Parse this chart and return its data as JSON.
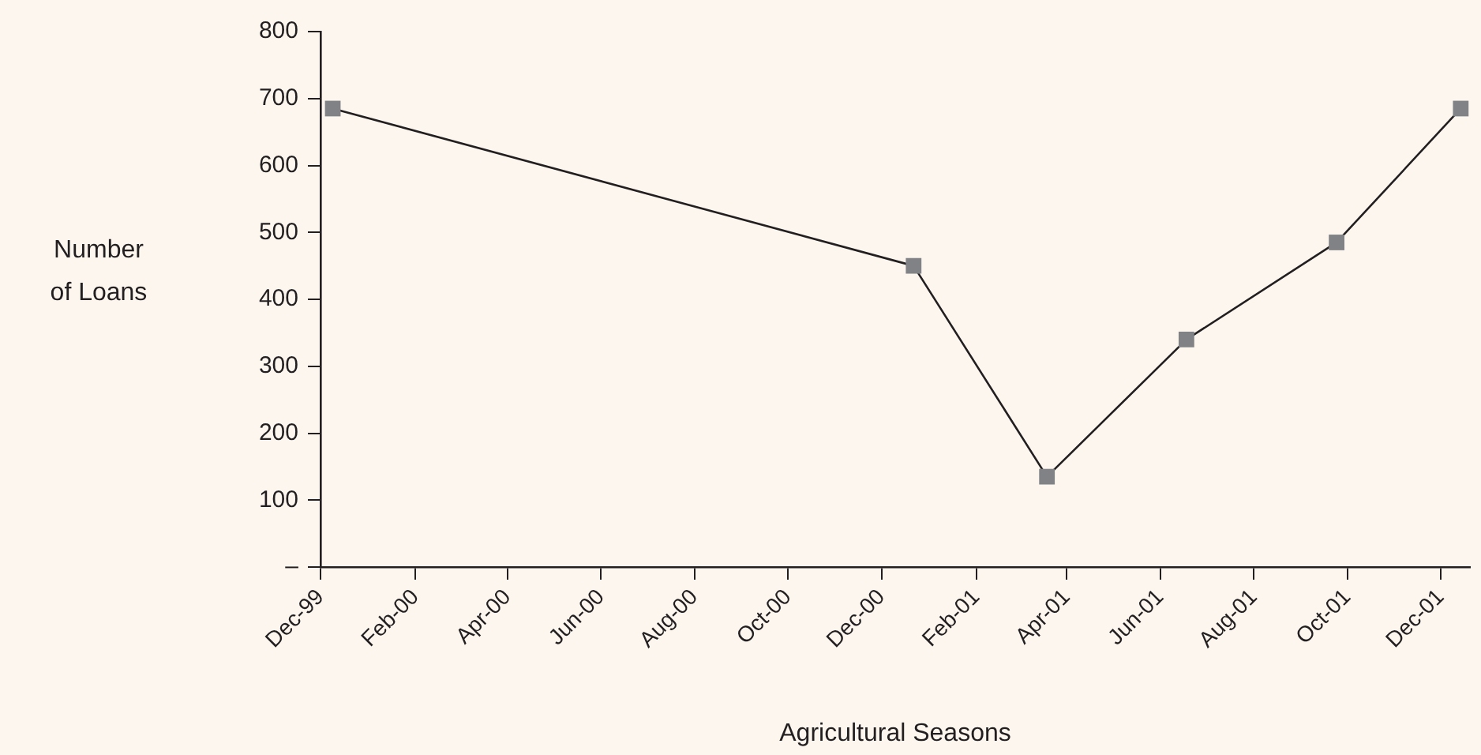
{
  "chart_data": {
    "type": "line",
    "xlabel": "Agricultural Seasons",
    "ylabel": "Number of Loans",
    "x": [
      "1999-12-09",
      "2000-12-22",
      "2001-03-19",
      "2001-06-18",
      "2001-09-24",
      "2001-12-14"
    ],
    "series": [
      {
        "color": "#808285",
        "values": [
          685,
          450,
          135,
          340,
          485,
          685
        ]
      }
    ],
    "marker": "square",
    "line_style": "solid",
    "grid": false,
    "legend": false,
    "xlim": [
      "1999-12-01",
      "2001-12-20"
    ],
    "xticks": [
      {
        "value": "1999-12-01",
        "label": "Dec-99"
      },
      {
        "value": "2000-02-01",
        "label": "Feb-00"
      },
      {
        "value": "2000-04-01",
        "label": "Apr-00"
      },
      {
        "value": "2000-06-01",
        "label": "Jun-00"
      },
      {
        "value": "2000-08-01",
        "label": "Aug-00"
      },
      {
        "value": "2000-10-01",
        "label": "Oct-00"
      },
      {
        "value": "2000-12-01",
        "label": "Dec-00"
      },
      {
        "value": "2001-02-01",
        "label": "Feb-01"
      },
      {
        "value": "2001-04-01",
        "label": "Apr-01"
      },
      {
        "value": "2001-06-01",
        "label": "Jun-01"
      },
      {
        "value": "2001-08-01",
        "label": "Aug-01"
      },
      {
        "value": "2001-10-01",
        "label": "Oct-01"
      },
      {
        "value": "2001-12-01",
        "label": "Dec-01"
      }
    ],
    "ylim": [
      0,
      800
    ],
    "yticks": [
      {
        "value": 0,
        "label": "–"
      },
      100,
      200,
      300,
      400,
      500,
      600,
      700,
      800
    ]
  }
}
